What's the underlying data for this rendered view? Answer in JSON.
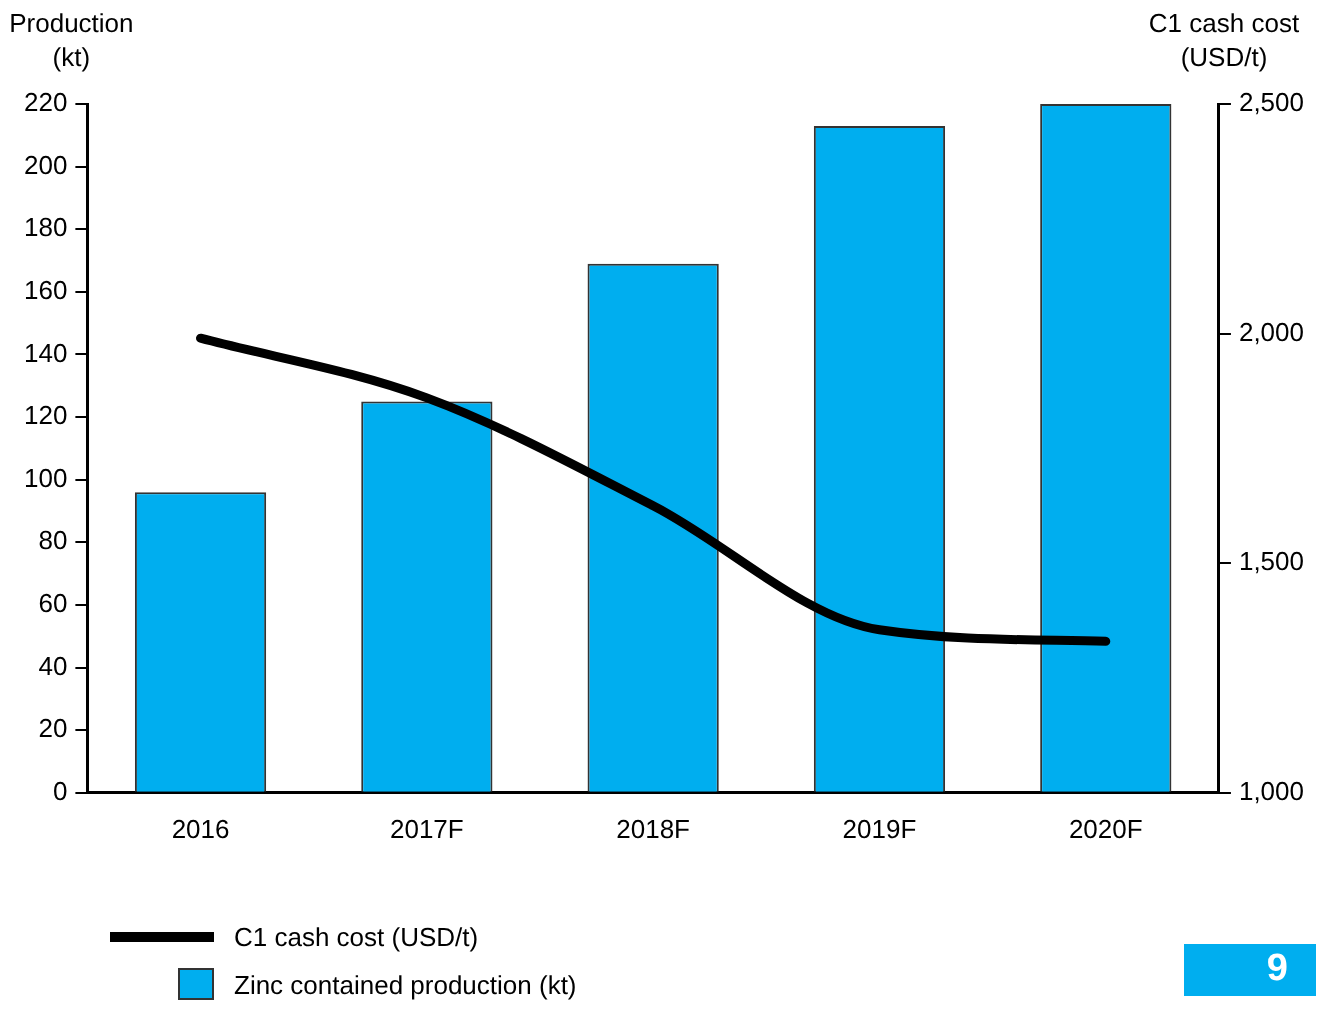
{
  "chart_data": {
    "type": "bar",
    "ylabel": "Production\n(kt)",
    "y2label": "C1 cash cost\n(USD/t)",
    "categories": [
      "2016",
      "2017F",
      "2018F",
      "2019F",
      "2020F"
    ],
    "series": [
      {
        "name": "C1 cash cost (USD/t)",
        "type": "line",
        "axis": "y2",
        "color": "#000000",
        "values": [
          1990,
          1860,
          1625,
          1355,
          1330
        ]
      },
      {
        "name": "Zinc contained production (kt)",
        "color": "#00aeef",
        "values": [
          96,
          125,
          169,
          213,
          220
        ]
      }
    ],
    "ylim": [
      0,
      220
    ],
    "yticks": [
      0,
      20,
      40,
      60,
      80,
      100,
      120,
      140,
      160,
      180,
      200,
      220
    ],
    "y2lim": [
      1000,
      2500
    ],
    "y2ticks": [
      {
        "value": 1000,
        "label": "1,000"
      },
      {
        "value": 1500,
        "label": "1,500"
      },
      {
        "value": 2000,
        "label": "2,000"
      },
      {
        "value": 2500,
        "label": "2,500"
      }
    ],
    "grid": false,
    "legend": "bottom left",
    "marker": "none",
    "line_style": "solid",
    "annotations": [
      "9"
    ]
  }
}
